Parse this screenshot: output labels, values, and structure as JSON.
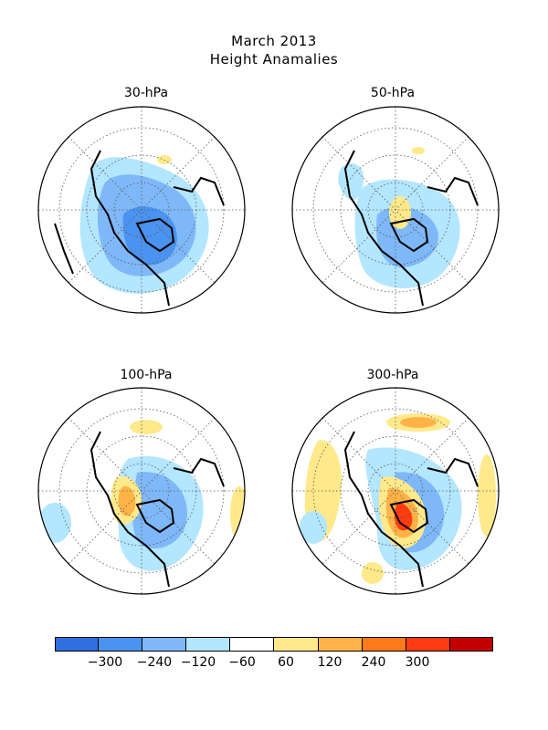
{
  "title": "March 2013",
  "subtitle": "Height Anamalies",
  "panels": [
    {
      "label": "30-hPa"
    },
    {
      "label": "50-hPa"
    },
    {
      "label": "100-hPa"
    },
    {
      "label": "300-hPa"
    }
  ],
  "colorbar": {
    "colors": [
      "#2f6fe0",
      "#4a93f0",
      "#7fb8f8",
      "#b3e6ff",
      "#ffffff",
      "#ffe98a",
      "#ffb347",
      "#ff7a1a",
      "#ff3b10",
      "#c30000"
    ],
    "ticks": [
      "-300",
      "-240",
      "-120",
      "-60",
      "60",
      "120",
      "240",
      "300"
    ]
  }
}
